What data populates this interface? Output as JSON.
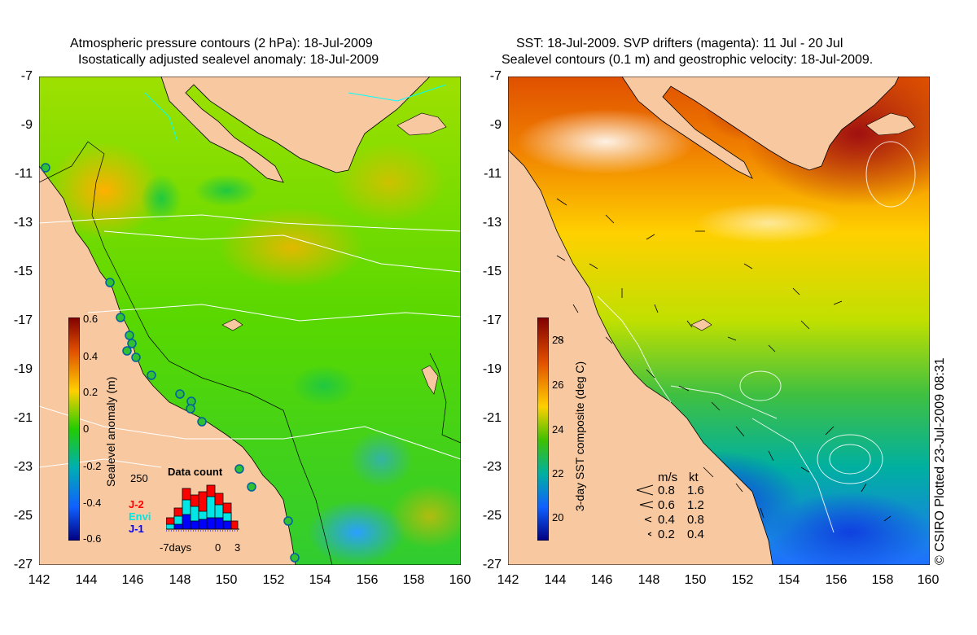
{
  "left_panel": {
    "title_line1": "Atmospheric pressure contours (2 hPa): 18-Jul-2009",
    "title_line2": "Isostatically adjusted sealevel anomaly: 18-Jul-2009",
    "colorbar_label": "Sealevel anomaly (m)",
    "colorbar_ticks": [
      "0.6",
      "0.4",
      "0.2",
      "0",
      "-0.2",
      "-0.4",
      "-0.6"
    ],
    "histogram": {
      "title": "Data count",
      "ymax_label": "250",
      "x_labels": [
        "-7days",
        "0",
        "3"
      ],
      "legend": [
        {
          "label": "J-2",
          "color": "#ff0000"
        },
        {
          "label": "Envi",
          "color": "#00e5e5"
        },
        {
          "label": "J-1",
          "color": "#0000ff"
        }
      ]
    }
  },
  "right_panel": {
    "title_line1": "SST: 18-Jul-2009. SVP drifters (magenta): 11 Jul - 20 Jul",
    "title_line2": "Sealevel contours (0.1 m) and geostrophic velocity: 18-Jul-2009.",
    "colorbar_label": "3-day SST composite (deg C)",
    "colorbar_ticks": [
      "28",
      "26",
      "24",
      "22",
      "20"
    ],
    "velocity_key": {
      "header_ms": "m/s",
      "header_kt": "kt",
      "rows": [
        {
          "ms": "0.8",
          "kt": "1.6"
        },
        {
          "ms": "0.6",
          "kt": "1.2"
        },
        {
          "ms": "0.4",
          "kt": "0.8"
        },
        {
          "ms": "0.2",
          "kt": "0.4"
        }
      ]
    }
  },
  "axes": {
    "y_ticks": [
      "-7",
      "-9",
      "-11",
      "-13",
      "-15",
      "-17",
      "-19",
      "-21",
      "-23",
      "-25",
      "-27"
    ],
    "x_ticks": [
      "142",
      "144",
      "146",
      "148",
      "150",
      "152",
      "154",
      "156",
      "158",
      "160"
    ]
  },
  "credit": "© CSIRO Plotted 23-Jul-2009 08:31",
  "colors": {
    "land": "#f8c9a0",
    "sla_high": "#ffa000",
    "sla_mid": "#a8e000",
    "sla_zero": "#44dd00",
    "sla_low": "#1e90ff",
    "sst_warm": "#b01010",
    "sst_mid": "#ffd000",
    "sst_cool": "#2060ff"
  }
}
